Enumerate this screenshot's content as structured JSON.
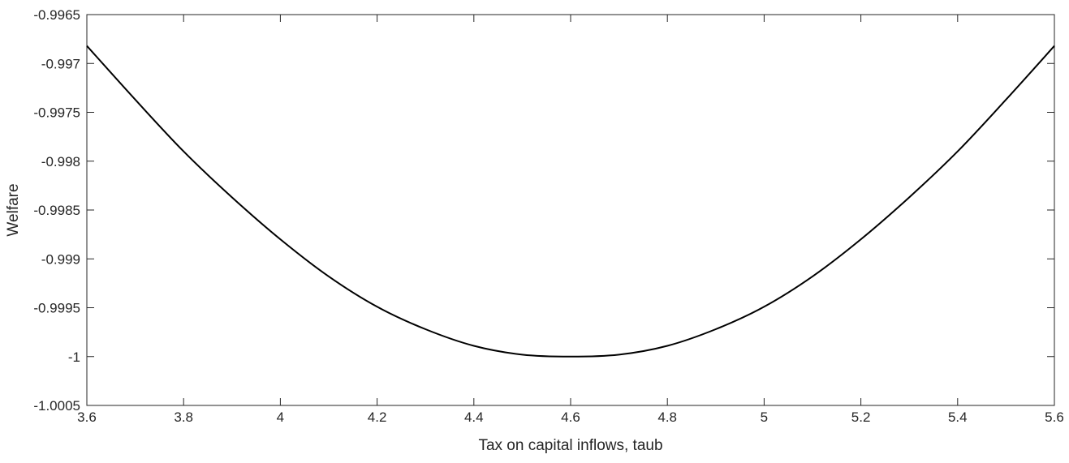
{
  "chart_data": {
    "type": "line",
    "title": "",
    "xlabel": "Tax on capital inflows, taub",
    "ylabel": "Welfare",
    "xlim": [
      3.6,
      5.6
    ],
    "ylim": [
      -1.0005,
      -0.9965
    ],
    "grid": false,
    "x_ticks": [
      3.6,
      3.8,
      4,
      4.2,
      4.4,
      4.6,
      4.8,
      5,
      5.2,
      5.4,
      5.6
    ],
    "x_tick_labels": [
      "3.6",
      "3.8",
      "4",
      "4.2",
      "4.4",
      "4.6",
      "4.8",
      "5",
      "5.2",
      "5.4",
      "5.6"
    ],
    "y_ticks": [
      -0.9965,
      -0.997,
      -0.9975,
      -0.998,
      -0.9985,
      -0.999,
      -0.9995,
      -1,
      -1.0005
    ],
    "y_tick_labels": [
      "-0.9965",
      "-0.997",
      "-0.9975",
      "-0.998",
      "-0.9985",
      "-0.999",
      "-0.9995",
      "-1",
      "-1.0005"
    ],
    "series": [
      {
        "color": "#000000",
        "x": [
          3.6,
          3.7,
          3.8,
          3.9,
          4.0,
          4.1,
          4.2,
          4.3,
          4.4,
          4.5,
          4.6,
          4.7,
          4.8,
          4.9,
          5.0,
          5.1,
          5.2,
          5.3,
          5.4,
          5.5,
          5.6
        ],
        "values": [
          -0.99682,
          -0.99737,
          -0.9979,
          -0.99837,
          -0.9988,
          -0.99918,
          -0.99949,
          -0.99972,
          -0.99989,
          -0.99998,
          -1.0,
          -0.99998,
          -0.99989,
          -0.99972,
          -0.99949,
          -0.99918,
          -0.9988,
          -0.99837,
          -0.9979,
          -0.99737,
          -0.99682
        ]
      }
    ]
  }
}
